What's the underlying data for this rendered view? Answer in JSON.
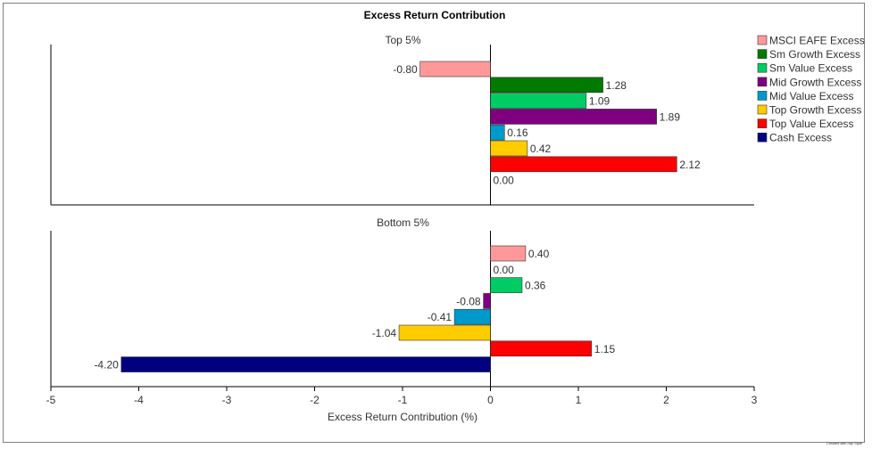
{
  "chart_data": {
    "type": "bar",
    "orientation": "horizontal",
    "title": "Excess Return Contribution",
    "xlabel": "Excess Return Contribution (%)",
    "xlim": [
      -5,
      3
    ],
    "xticks": [
      "-5",
      "-4",
      "-3",
      "-2",
      "-1",
      "0",
      "1",
      "2",
      "3"
    ],
    "legend_position": "right",
    "categories": [
      "MSCI EAFE Excess",
      "Sm Growth Excess",
      "Sm Value Excess",
      "Mid Growth Excess",
      "Mid Value Excess",
      "Top Growth Excess",
      "Top Value Excess",
      "Cash Excess"
    ],
    "colors": [
      "#ff9999",
      "#007a00",
      "#00cc66",
      "#7f007f",
      "#0099cc",
      "#ffcc00",
      "#ff0000",
      "#000080"
    ],
    "panels": [
      {
        "name": "Top 5%",
        "values": [
          -0.8,
          1.28,
          1.09,
          1.89,
          0.16,
          0.42,
          2.12,
          0.0
        ],
        "value_labels": [
          "-0.80",
          "1.28",
          "1.09",
          "1.89",
          "0.16",
          "0.42",
          "2.12",
          "0.00"
        ]
      },
      {
        "name": "Bottom 5%",
        "values": [
          0.4,
          0.0,
          0.36,
          -0.08,
          -0.41,
          -1.04,
          1.15,
          -4.2
        ],
        "value_labels": [
          "0.40",
          "0.00",
          "0.36",
          "-0.08",
          "-0.41",
          "-1.04",
          "1.15",
          "-4.20"
        ]
      }
    ]
  },
  "footer": "Created with mpl Style"
}
